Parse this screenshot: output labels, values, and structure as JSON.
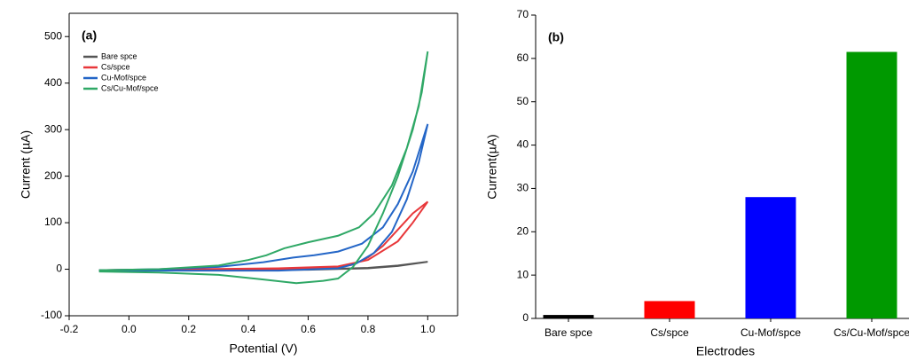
{
  "chart_data": [
    {
      "type": "line",
      "annotation": "(a)",
      "xlabel": "Potential (V)",
      "ylabel": "Current (µA)",
      "xlim": [
        -0.2,
        1.1
      ],
      "xticks": [
        -0.2,
        {
          "value": 0,
          "label": "0.0"
        },
        0.2,
        0.4,
        0.6,
        0.8,
        {
          "value": 1,
          "label": "1.0"
        }
      ],
      "ylim": [
        -100,
        550
      ],
      "yticks": [
        -100,
        0,
        100,
        200,
        300,
        400,
        500
      ],
      "legend": "upper left",
      "series": [
        {
          "name": "Bare spce",
          "color": "#555555",
          "x": [
            -0.1,
            0.2,
            0.5,
            0.7,
            0.8,
            0.9,
            1.0,
            0.9,
            0.8,
            0.6,
            0.3,
            -0.1
          ],
          "values": [
            -2,
            -1,
            0,
            1,
            3,
            8,
            16,
            7,
            2,
            -1,
            -2,
            -3
          ]
        },
        {
          "name": "Cs/spce",
          "color": "#e8373a",
          "x": [
            -0.1,
            0.2,
            0.5,
            0.7,
            0.8,
            0.9,
            0.95,
            1.0,
            0.95,
            0.9,
            0.85,
            0.8,
            0.75,
            0.7,
            0.5,
            0.2,
            -0.1
          ],
          "values": [
            -2,
            0,
            2,
            6,
            20,
            60,
            100,
            145,
            120,
            85,
            50,
            25,
            10,
            4,
            0,
            -2,
            -3
          ]
        },
        {
          "name": "Cu-Mof/spce",
          "color": "#2466c7",
          "x": [
            -0.1,
            0.1,
            0.3,
            0.45,
            0.55,
            0.62,
            0.7,
            0.78,
            0.85,
            0.9,
            0.95,
            1.0,
            0.97,
            0.93,
            0.88,
            0.82,
            0.76,
            0.7,
            0.5,
            0.2,
            -0.1
          ],
          "values": [
            -2,
            0,
            5,
            15,
            25,
            30,
            38,
            55,
            90,
            140,
            210,
            312,
            230,
            150,
            80,
            35,
            12,
            2,
            -3,
            -3,
            -3
          ]
        },
        {
          "name": "Cs/Cu-Mof/spce",
          "color": "#2fa866",
          "x": [
            -0.1,
            0.1,
            0.3,
            0.4,
            0.46,
            0.52,
            0.6,
            0.7,
            0.77,
            0.82,
            0.88,
            0.93,
            0.97,
            1.0,
            0.98,
            0.95,
            0.9,
            0.85,
            0.8,
            0.75,
            0.7,
            0.65,
            0.56,
            0.45,
            0.3,
            0.1,
            -0.1
          ],
          "values": [
            -2,
            0,
            8,
            20,
            30,
            45,
            58,
            72,
            90,
            120,
            180,
            260,
            350,
            468,
            380,
            300,
            200,
            120,
            50,
            5,
            -20,
            -25,
            -30,
            -22,
            -12,
            -7,
            -5
          ]
        }
      ]
    },
    {
      "type": "bar",
      "annotation": "(b)",
      "xlabel": "Electrodes",
      "ylabel": "Current(µA)",
      "categories": [
        "Bare spce",
        "Cs/spce",
        "Cu-Mof/spce",
        "Cs/Cu-Mof/spce"
      ],
      "values": [
        0.8,
        4,
        28,
        61.5
      ],
      "colors": [
        "#000000",
        "#ff0000",
        "#0000ff",
        "#009900"
      ],
      "ylim": [
        0,
        70
      ],
      "yticks": [
        0,
        10,
        20,
        30,
        40,
        50,
        60,
        70
      ]
    }
  ]
}
